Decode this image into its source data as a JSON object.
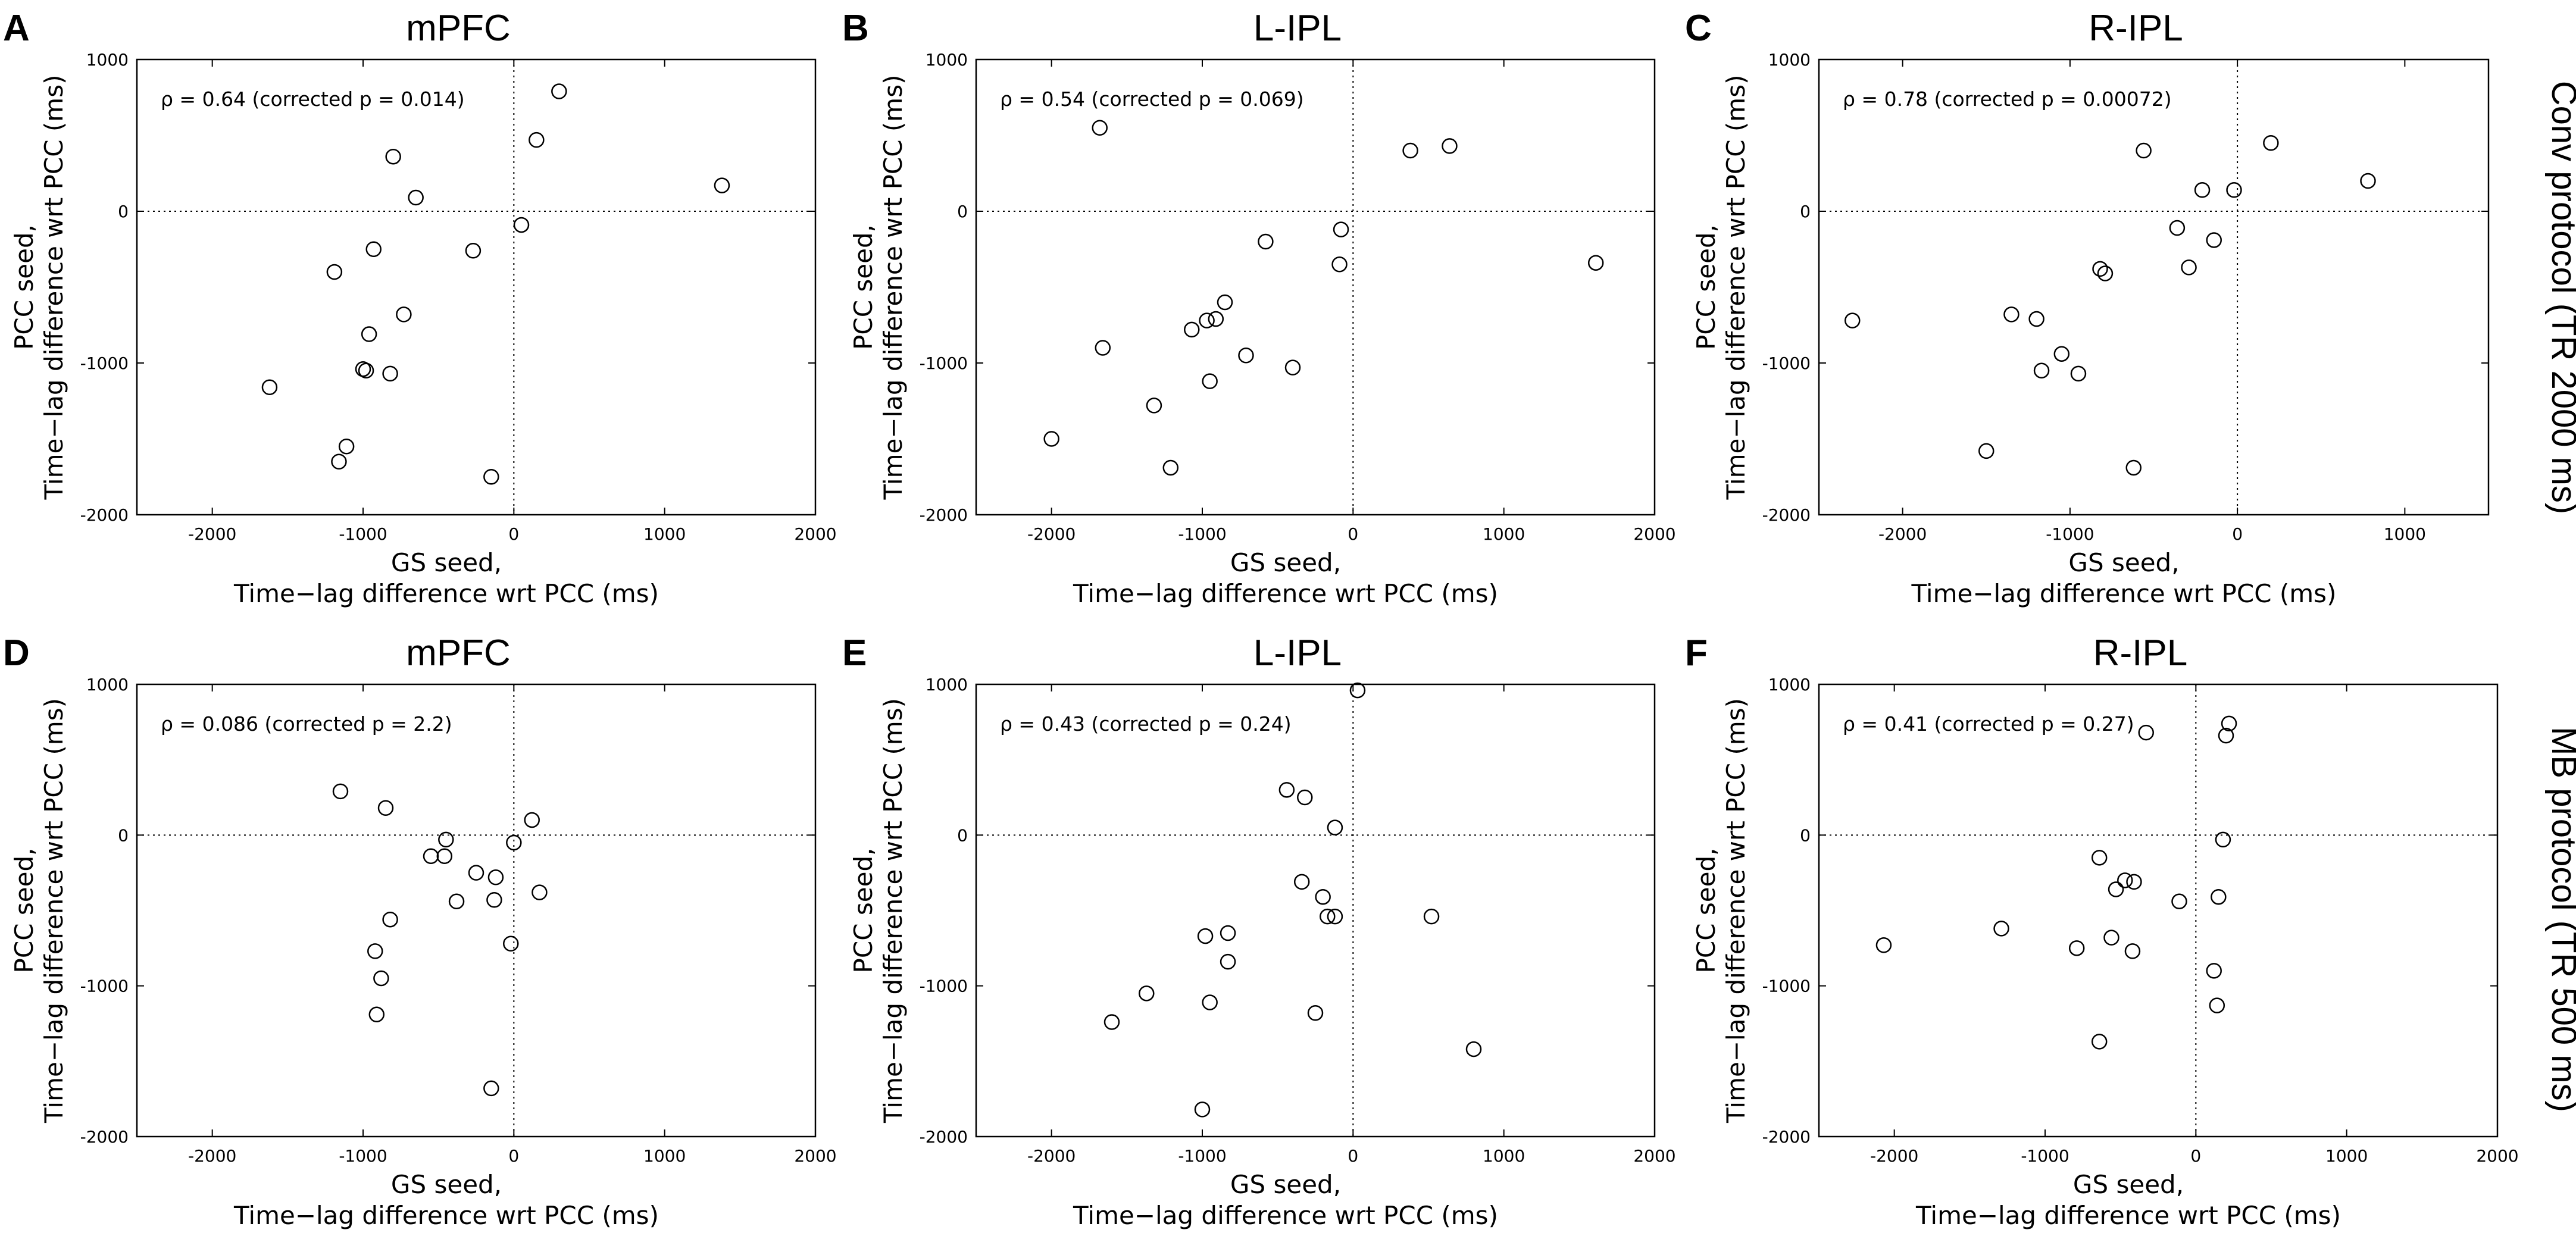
{
  "figure": {
    "row_labels": [
      "Conv protocol (TR 2000 ms)",
      "MB protocol (TR 500 ms)"
    ]
  },
  "chart_data": [
    {
      "type": "scatter",
      "letter": "A",
      "title": "mPFC",
      "stat_label": "ρ = 0.64  (corrected p = 0.014)",
      "xlabel": [
        "GS seed,",
        "Time−lag difference wrt PCC (ms)"
      ],
      "ylabel": [
        "PCC seed,",
        "Time−lag difference wrt PCC (ms)"
      ],
      "xlim": [
        -2500,
        2000
      ],
      "ylim": [
        -2000,
        1000
      ],
      "xticks": [
        -2000,
        -1000,
        0,
        1000,
        2000
      ],
      "yticks": [
        -2000,
        -1000,
        0,
        1000
      ],
      "x": [
        300,
        150,
        1380,
        -800,
        -650,
        50,
        -930,
        -270,
        -1190,
        -730,
        -960,
        -1000,
        -980,
        -820,
        -1620,
        -1110,
        -1160,
        -150
      ],
      "y": [
        790,
        470,
        170,
        360,
        90,
        -90,
        -250,
        -260,
        -400,
        -680,
        -810,
        -1040,
        -1050,
        -1070,
        -1160,
        -1550,
        -1650,
        -1750
      ]
    },
    {
      "type": "scatter",
      "letter": "B",
      "title": "L-IPL",
      "stat_label": "ρ = 0.54  (corrected p = 0.069)",
      "xlabel": [
        "GS seed,",
        "Time−lag difference wrt PCC (ms)"
      ],
      "ylabel": [
        "PCC seed,",
        "Time−lag difference wrt PCC (ms)"
      ],
      "xlim": [
        -2500,
        2000
      ],
      "ylim": [
        -2000,
        1000
      ],
      "xticks": [
        -2000,
        -1000,
        0,
        1000,
        2000
      ],
      "yticks": [
        -2000,
        -1000,
        0,
        1000
      ],
      "x": [
        -1680,
        380,
        640,
        1610,
        -80,
        -90,
        -580,
        -850,
        -910,
        -970,
        -1070,
        -710,
        -1660,
        -400,
        -950,
        -1320,
        -2000,
        -1210
      ],
      "y": [
        550,
        400,
        430,
        -340,
        -120,
        -350,
        -200,
        -600,
        -710,
        -720,
        -780,
        -950,
        -900,
        -1030,
        -1120,
        -1280,
        -1500,
        -1690
      ]
    },
    {
      "type": "scatter",
      "letter": "C",
      "title": "R-IPL",
      "stat_label": "ρ = 0.78  (corrected p = 0.00072)",
      "xlabel": [
        "GS seed,",
        "Time−lag difference wrt PCC (ms)"
      ],
      "ylabel": [
        "PCC seed,",
        "Time−lag difference wrt PCC (ms)"
      ],
      "xlim": [
        -2500,
        1500
      ],
      "ylim": [
        -2000,
        1000
      ],
      "xticks": [
        -2000,
        -1000,
        0,
        1000
      ],
      "yticks": [
        -2000,
        -1000,
        0,
        1000
      ],
      "x": [
        200,
        -560,
        780,
        -210,
        -20,
        -360,
        -140,
        -290,
        -820,
        -790,
        -2300,
        -1350,
        -1200,
        -1050,
        -1170,
        -950,
        -620,
        -1500
      ],
      "y": [
        450,
        400,
        200,
        140,
        140,
        -110,
        -190,
        -370,
        -380,
        -410,
        -720,
        -680,
        -710,
        -940,
        -1050,
        -1070,
        -1690,
        -1580
      ]
    },
    {
      "type": "scatter",
      "letter": "D",
      "title": "mPFC",
      "stat_label": "ρ = 0.086  (corrected p = 2.2)",
      "xlabel": [
        "GS seed,",
        "Time−lag difference wrt PCC (ms)"
      ],
      "ylabel": [
        "PCC seed,",
        "Time−lag difference wrt PCC (ms)"
      ],
      "xlim": [
        -2500,
        2000
      ],
      "ylim": [
        -2000,
        1000
      ],
      "xticks": [
        -2000,
        -1000,
        0,
        1000,
        2000
      ],
      "yticks": [
        -2000,
        -1000,
        0,
        1000
      ],
      "x": [
        -1150,
        -850,
        120,
        -450,
        0,
        -460,
        -550,
        -250,
        -120,
        -130,
        -380,
        170,
        -820,
        -20,
        -920,
        -880,
        -910,
        -150
      ],
      "y": [
        290,
        180,
        100,
        -30,
        -50,
        -140,
        -140,
        -250,
        -280,
        -430,
        -440,
        -380,
        -560,
        -720,
        -770,
        -950,
        -1190,
        -1680
      ]
    },
    {
      "type": "scatter",
      "letter": "E",
      "title": "L-IPL",
      "stat_label": "ρ = 0.43  (corrected p = 0.24)",
      "xlabel": [
        "GS seed,",
        "Time−lag difference wrt PCC (ms)"
      ],
      "ylabel": [
        "PCC seed,",
        "Time−lag difference wrt PCC (ms)"
      ],
      "xlim": [
        -2500,
        2000
      ],
      "ylim": [
        -2000,
        1000
      ],
      "xticks": [
        -2000,
        -1000,
        0,
        1000,
        2000
      ],
      "yticks": [
        -2000,
        -1000,
        0,
        1000
      ],
      "x": [
        30,
        -440,
        -320,
        -120,
        -340,
        -200,
        -170,
        -120,
        520,
        -980,
        -830,
        -830,
        -1370,
        -950,
        -250,
        800,
        -1600,
        -1000
      ],
      "y": [
        960,
        300,
        250,
        50,
        -310,
        -410,
        -540,
        -540,
        -540,
        -670,
        -650,
        -840,
        -1050,
        -1110,
        -1180,
        -1420,
        -1240,
        -1820
      ]
    },
    {
      "type": "scatter",
      "letter": "F",
      "title": "R-IPL",
      "stat_label": "ρ = 0.41  (corrected p = 0.27)",
      "xlabel": [
        "GS seed,",
        "Time−lag difference wrt PCC (ms)"
      ],
      "ylabel": [
        "PCC seed,",
        "Time−lag difference wrt PCC (ms)"
      ],
      "xlim": [
        -2500,
        2000
      ],
      "ylim": [
        -2000,
        1000
      ],
      "xticks": [
        -2000,
        -1000,
        0,
        1000,
        2000
      ],
      "yticks": [
        -2000,
        -1000,
        0,
        1000
      ],
      "x": [
        220,
        200,
        -330,
        180,
        -640,
        -410,
        -470,
        -530,
        -110,
        150,
        -2070,
        -1290,
        -790,
        -560,
        -420,
        120,
        140,
        -640
      ],
      "y": [
        740,
        660,
        680,
        -30,
        -150,
        -310,
        -300,
        -360,
        -440,
        -410,
        -730,
        -620,
        -750,
        -680,
        -770,
        -900,
        -1130,
        -1370
      ]
    }
  ]
}
